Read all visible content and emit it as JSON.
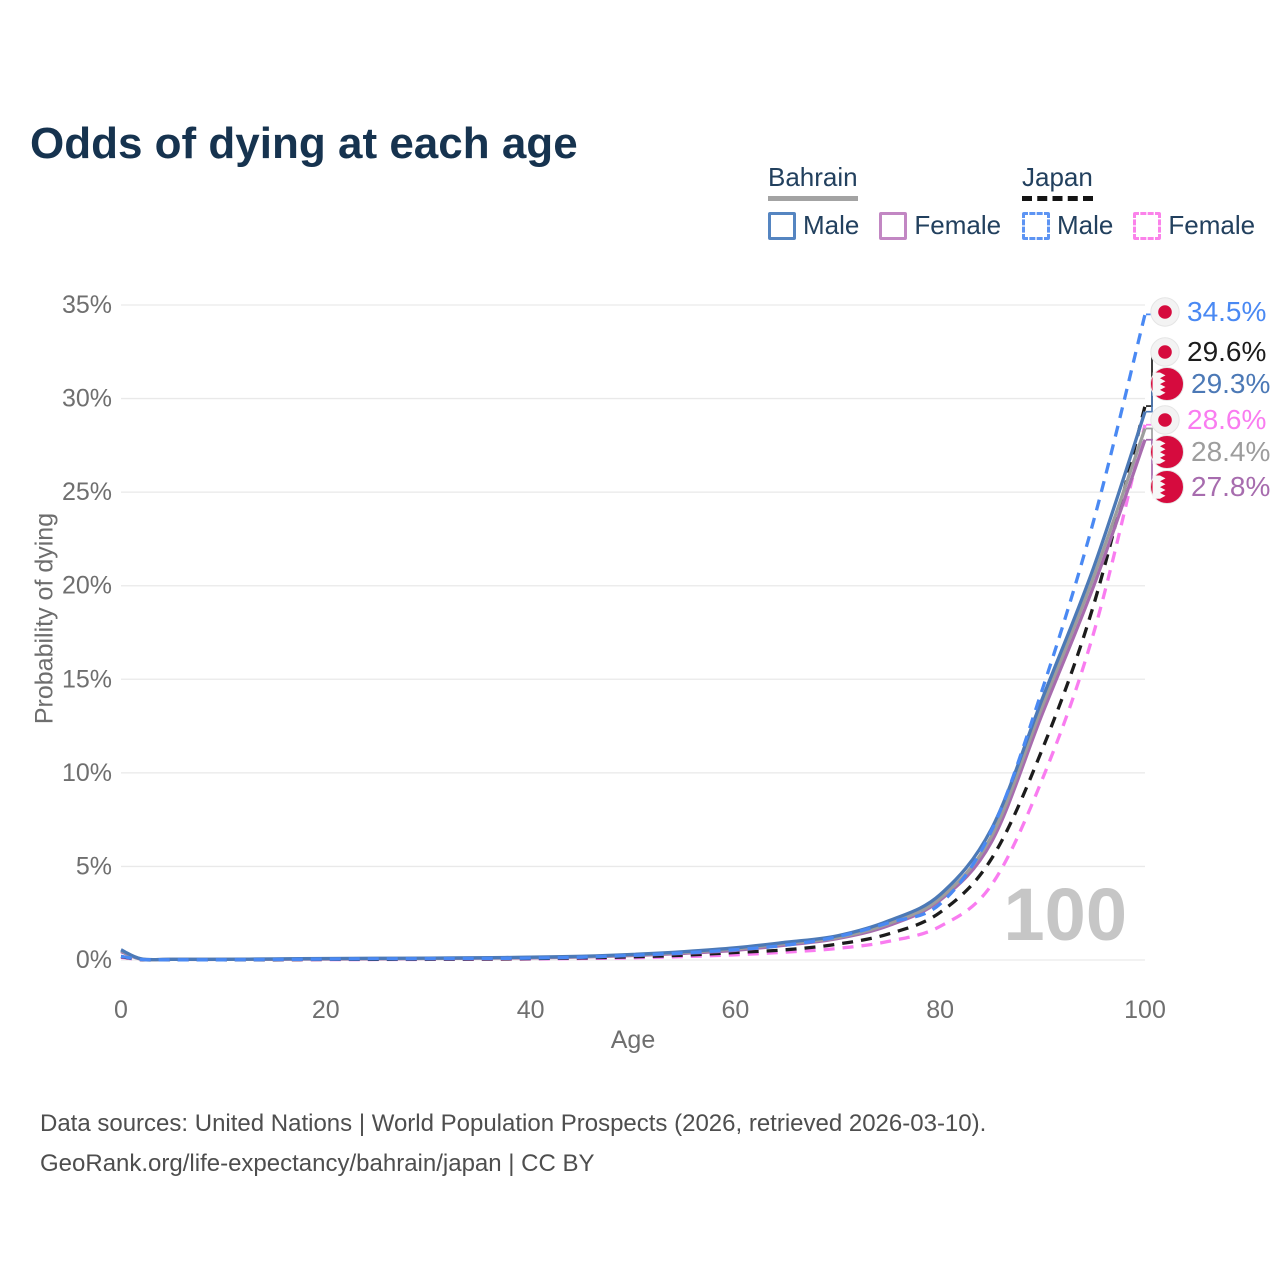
{
  "title": "Odds of dying at each age",
  "legend": {
    "groups": [
      {
        "id": "bahrain",
        "label": "Bahrain",
        "items": [
          {
            "id": "bahrain-male",
            "label": "Male"
          },
          {
            "id": "bahrain-female",
            "label": "Female"
          }
        ]
      },
      {
        "id": "japan",
        "label": "Japan",
        "items": [
          {
            "id": "japan-male",
            "label": "Male"
          },
          {
            "id": "japan-female",
            "label": "Female"
          }
        ]
      }
    ]
  },
  "chart_data": {
    "type": "line",
    "title": "Odds of dying at each age",
    "xlabel": "Age",
    "ylabel": "Probability of dying",
    "xlim": [
      0,
      100
    ],
    "ylim": [
      0,
      35
    ],
    "x_ticks": [
      0,
      20,
      40,
      60,
      80,
      100
    ],
    "y_ticks": [
      "0%",
      "5%",
      "10%",
      "15%",
      "20%",
      "25%",
      "30%",
      "35%"
    ],
    "grid": "horizontal",
    "watermark": "100",
    "x": [
      0,
      2,
      5,
      10,
      15,
      20,
      25,
      30,
      35,
      40,
      45,
      50,
      55,
      60,
      65,
      70,
      75,
      80,
      85,
      90,
      95,
      100
    ],
    "series": [
      {
        "name": "Japan Female",
        "country": "japan",
        "sex": "female",
        "style": "dashed",
        "color": "#f97cf0",
        "values": [
          0.15,
          0.018,
          0.008,
          0.008,
          0.012,
          0.02,
          0.025,
          0.03,
          0.04,
          0.055,
          0.08,
          0.12,
          0.18,
          0.28,
          0.42,
          0.62,
          1.0,
          1.8,
          4.0,
          9.7,
          17.5,
          28.6
        ],
        "end_label": "28.6%"
      },
      {
        "name": "Japan",
        "country": "japan",
        "sex": "both",
        "style": "dashed",
        "color": "#1c1c1c",
        "values": [
          0.18,
          0.02,
          0.01,
          0.01,
          0.018,
          0.03,
          0.035,
          0.045,
          0.055,
          0.075,
          0.11,
          0.17,
          0.26,
          0.4,
          0.55,
          0.85,
          1.4,
          2.55,
          5.4,
          11.3,
          19.0,
          29.6
        ],
        "end_label": "29.6%"
      },
      {
        "name": "Bahrain Female",
        "country": "bahrain",
        "sex": "female",
        "style": "solid",
        "color": "#a76cae",
        "values": [
          0.45,
          0.045,
          0.03,
          0.03,
          0.04,
          0.05,
          0.06,
          0.08,
          0.1,
          0.12,
          0.16,
          0.24,
          0.36,
          0.52,
          0.8,
          1.15,
          1.85,
          3.2,
          6.3,
          13.2,
          20.0,
          27.8
        ],
        "end_label": "27.8%"
      },
      {
        "name": "Bahrain",
        "country": "bahrain",
        "sex": "both",
        "style": "solid",
        "color": "#9d9d9d",
        "values": [
          0.5,
          0.05,
          0.035,
          0.035,
          0.05,
          0.07,
          0.08,
          0.09,
          0.11,
          0.14,
          0.18,
          0.27,
          0.41,
          0.6,
          0.88,
          1.2,
          1.95,
          3.3,
          6.6,
          13.6,
          20.5,
          28.4
        ],
        "end_label": "28.4%"
      },
      {
        "name": "Bahrain Male",
        "country": "bahrain",
        "sex": "male",
        "style": "solid",
        "color": "#4c79b6",
        "values": [
          0.55,
          0.06,
          0.04,
          0.04,
          0.06,
          0.08,
          0.09,
          0.1,
          0.12,
          0.15,
          0.2,
          0.3,
          0.45,
          0.65,
          0.95,
          1.3,
          2.1,
          3.5,
          7.0,
          14.0,
          21.0,
          29.3
        ],
        "end_label": "29.3%"
      },
      {
        "name": "Japan Male",
        "country": "japan",
        "sex": "male",
        "style": "dashed",
        "color": "#4a89f3",
        "values": [
          0.2,
          0.025,
          0.012,
          0.012,
          0.025,
          0.05,
          0.06,
          0.07,
          0.08,
          0.1,
          0.15,
          0.25,
          0.38,
          0.55,
          0.8,
          1.25,
          2.0,
          3.0,
          6.9,
          14.5,
          23.5,
          34.5
        ],
        "end_label": "34.5%"
      }
    ],
    "end_labels": [
      {
        "value": "34.5%",
        "series": "Japan Male",
        "flag": "japan",
        "color": "#4a89f3"
      },
      {
        "value": "29.6%",
        "series": "Japan",
        "flag": "japan",
        "color": "#1c1c1c"
      },
      {
        "value": "29.3%",
        "series": "Bahrain Male",
        "flag": "bahrain",
        "color": "#4c79b6"
      },
      {
        "value": "28.6%",
        "series": "Japan Female",
        "flag": "japan",
        "color": "#f97cf0"
      },
      {
        "value": "28.4%",
        "series": "Bahrain",
        "flag": "bahrain",
        "color": "#9d9d9d"
      },
      {
        "value": "27.8%",
        "series": "Bahrain Female",
        "flag": "bahrain",
        "color": "#a76cae"
      }
    ],
    "flag_red": "#d60b3e"
  },
  "footer": {
    "line1": "Data sources: United Nations | World Population Prospects (2026, retrieved 2026-03-10).",
    "line2": "GeoRank.org/life-expectancy/bahrain/japan | CC BY"
  }
}
